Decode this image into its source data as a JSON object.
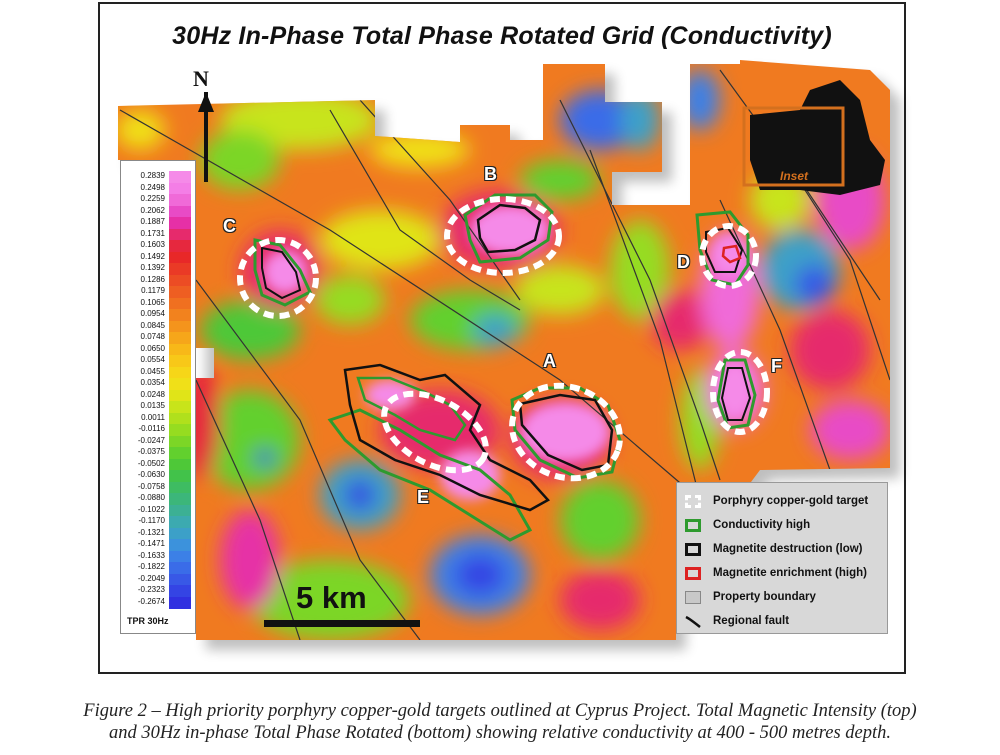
{
  "title": "30Hz In-Phase Total Phase Rotated Grid (Conductivity)",
  "north_label": "N",
  "scale_label": "5 km",
  "inset_label": "Inset",
  "colorbar": {
    "unit_label": "TPR  30Hz",
    "values": [
      "0.2839",
      "0.2498",
      "0.2259",
      "0.2062",
      "0.1887",
      "0.1731",
      "0.1603",
      "0.1492",
      "0.1392",
      "0.1286",
      "0.1179",
      "0.1065",
      "0.0954",
      "0.0845",
      "0.0748",
      "0.0650",
      "0.0554",
      "0.0455",
      "0.0354",
      "0.0248",
      "0.0135",
      "0.0011",
      "-0.0116",
      "-0.0247",
      "-0.0375",
      "-0.0502",
      "-0.0630",
      "-0.0758",
      "-0.0880",
      "-0.1022",
      "-0.1170",
      "-0.1321",
      "-0.1471",
      "-0.1633",
      "-0.1822",
      "-0.2049",
      "-0.2323",
      "-0.2674"
    ],
    "colors": [
      "#f58ae8",
      "#f47ee6",
      "#f06ad8",
      "#e84bc6",
      "#e630a6",
      "#e62a6c",
      "#e6283e",
      "#e82828",
      "#ea3a26",
      "#ec4c24",
      "#ee5e22",
      "#f07020",
      "#f2821e",
      "#f4941c",
      "#f6a61a",
      "#f8b818",
      "#f8c818",
      "#f6d618",
      "#f0e018",
      "#e0e418",
      "#c8e41a",
      "#b0e01c",
      "#96dc20",
      "#7cd626",
      "#62d02e",
      "#4ec838",
      "#42c24a",
      "#3ebc62",
      "#3cb67a",
      "#3cb094",
      "#3caab0",
      "#3ca0c8",
      "#3c92dc",
      "#3c80e6",
      "#3a6ce8",
      "#3858e6",
      "#3444e4",
      "#3030e0"
    ]
  },
  "targets": [
    {
      "id": "A",
      "label": "A"
    },
    {
      "id": "B",
      "label": "B"
    },
    {
      "id": "C",
      "label": "C"
    },
    {
      "id": "D",
      "label": "D"
    },
    {
      "id": "E",
      "label": "E"
    },
    {
      "id": "F",
      "label": "F"
    }
  ],
  "legend": {
    "items": [
      {
        "label": "Porphyry copper-gold target",
        "symbol": "white-dashed-box"
      },
      {
        "label": "Conductivity high",
        "symbol": "green-box"
      },
      {
        "label": "Magnetite destruction (low)",
        "symbol": "black-box"
      },
      {
        "label": "Magnetite enrichment (high)",
        "symbol": "red-box"
      },
      {
        "label": "Property boundary",
        "symbol": "grey-box"
      },
      {
        "label": "Regional fault",
        "symbol": "fault-line"
      }
    ],
    "colors": {
      "target": "#ffffff",
      "conductivity": "#2e9a2e",
      "destruction": "#111111",
      "enrichment": "#dd2222",
      "boundary": "#c8c8c8",
      "fault": "#111111",
      "inset": "#d4701e"
    }
  },
  "caption": {
    "line1": "Figure 2 – High priority porphyry copper-gold targets outlined at Cyprus Project. Total Magnetic Intensity (top)",
    "line2": "and 30Hz in-phase Total Phase Rotated (bottom) showing relative conductivity at 400 - 500 metres depth."
  }
}
